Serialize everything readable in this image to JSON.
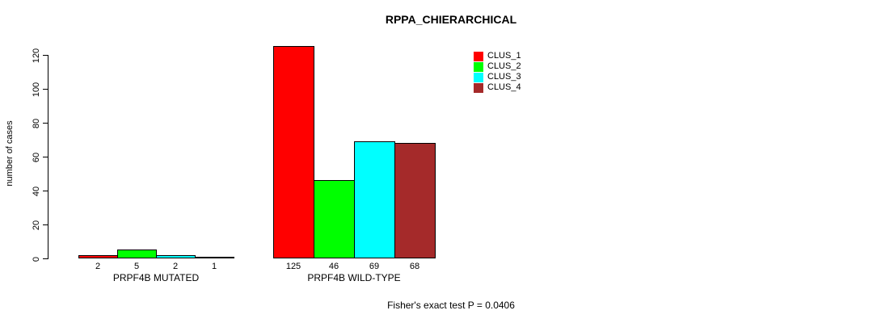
{
  "chart": {
    "title": "RPPA_CHIERARCHICAL",
    "ylabel": "number of cases",
    "footnote": "Fisher's exact test P = 0.0406"
  },
  "chart_data": {
    "type": "bar",
    "title": "RPPA_CHIERARCHICAL",
    "xlabel": "",
    "ylabel": "number of cases",
    "categories": [
      "PRPF4B MUTATED",
      "PRPF4B WILD-TYPE"
    ],
    "series": [
      {
        "name": "CLUS_1",
        "color": "#FF0000",
        "values": [
          2,
          125
        ]
      },
      {
        "name": "CLUS_2",
        "color": "#00FF00",
        "values": [
          5,
          46
        ]
      },
      {
        "name": "CLUS_3",
        "color": "#00FFFF",
        "values": [
          2,
          69
        ]
      },
      {
        "name": "CLUS_4",
        "color": "#A52A2A",
        "values": [
          1,
          68
        ]
      }
    ],
    "bar_value_labels": [
      [
        "2",
        "5",
        "2",
        "1"
      ],
      [
        "125",
        "46",
        "69",
        "68"
      ]
    ],
    "yticks": [
      0,
      20,
      40,
      60,
      80,
      100,
      120
    ],
    "ylim": [
      0,
      130
    ],
    "grid": false,
    "legend_position": "top-right",
    "annotation": "Fisher's exact test P = 0.0406",
    "bar_border_color": "#000000",
    "axis_color": "#000000"
  }
}
